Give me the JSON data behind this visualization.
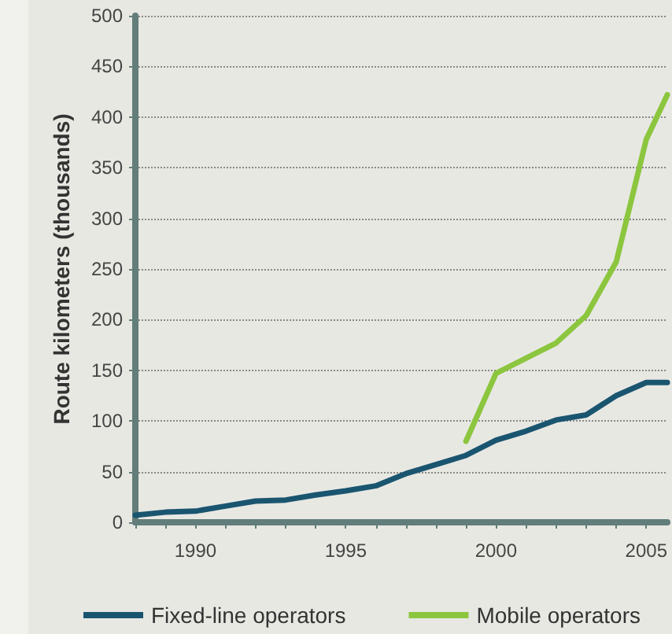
{
  "chart_data": {
    "type": "line",
    "ylabel": "Route kilometers (thousands)",
    "xlim": [
      1988,
      2005.7
    ],
    "xticks": [
      {
        "value": 1988,
        "label": null
      },
      {
        "value": 1989,
        "label": null
      },
      1990,
      {
        "value": 1991,
        "label": null
      },
      {
        "value": 1992,
        "label": null
      },
      {
        "value": 1993,
        "label": null
      },
      {
        "value": 1994,
        "label": null
      },
      1995,
      {
        "value": 1996,
        "label": null
      },
      {
        "value": 1997,
        "label": null
      },
      {
        "value": 1998,
        "label": null
      },
      {
        "value": 1999,
        "label": null
      },
      2000,
      {
        "value": 2001,
        "label": null
      },
      {
        "value": 2002,
        "label": null
      },
      {
        "value": 2003,
        "label": null
      },
      {
        "value": 2004,
        "label": null
      },
      2005
    ],
    "ylim": [
      0,
      500
    ],
    "yticks": [
      0,
      50,
      100,
      150,
      200,
      250,
      300,
      350,
      400,
      450,
      500
    ],
    "grid": "y",
    "legend": "bottom",
    "marker": "none",
    "line_style": "solid",
    "series": [
      {
        "name": "Fixed-line operators",
        "color": "#1a5570",
        "x": [
          1988,
          1989,
          1990,
          1991,
          1992,
          1993,
          1994,
          1995,
          1996,
          1997,
          1998,
          1999,
          2000,
          2001,
          2002,
          2003,
          2004,
          2005,
          2005.7
        ],
        "values": [
          7,
          10,
          11,
          16,
          21,
          22,
          27,
          31,
          36,
          48,
          57,
          66,
          81,
          90,
          101,
          106,
          125,
          138,
          138
        ]
      },
      {
        "name": "Mobile operators",
        "color": "#8cc63f",
        "x": [
          1999,
          2000,
          2001,
          2002,
          2003,
          2004,
          2005,
          2005.7
        ],
        "values": [
          80,
          147,
          162,
          177,
          204,
          257,
          378,
          422
        ]
      }
    ]
  }
}
